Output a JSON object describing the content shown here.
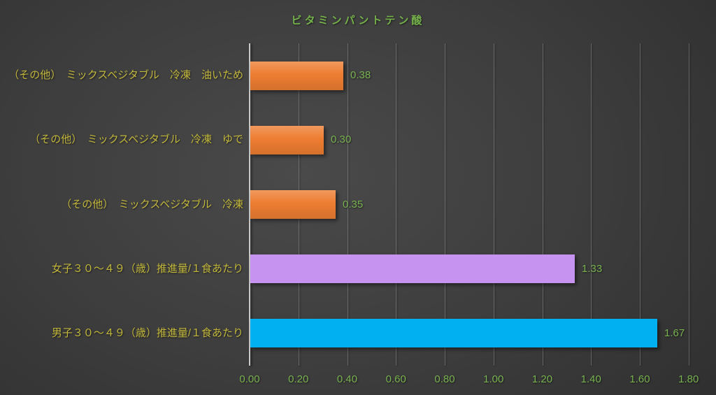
{
  "chart_data": {
    "type": "bar",
    "orientation": "horizontal",
    "title": "ビタミンパントテン酸",
    "categories": [
      "（その他）　ミックスベジタブル　冷凍　油いため",
      "（その他）　ミックスベジタブル　冷凍　ゆで",
      "（その他）　ミックスベジタブル　冷凍",
      "女子３０～４９（歳）推進量/１食あたり",
      "男子３０～４９（歳）推進量/１食あたり"
    ],
    "values": [
      0.38,
      0.3,
      0.35,
      1.33,
      1.67
    ],
    "value_labels": [
      "0.38",
      "0.30",
      "0.35",
      "1.33",
      "1.67"
    ],
    "bar_colors": [
      "#ED7D31",
      "#ED7D31",
      "#ED7D31",
      "#C694F0",
      "#00B0F0"
    ],
    "bar_gradient": [
      true,
      true,
      true,
      false,
      false
    ],
    "xticks": [
      "0.00",
      "0.20",
      "0.40",
      "0.60",
      "0.80",
      "1.00",
      "1.20",
      "1.40",
      "1.60",
      "1.80"
    ],
    "xlim": [
      0,
      1.8
    ],
    "grid": true,
    "legend": "none",
    "category_order": "top-to-bottom"
  },
  "colors": {
    "title": "#75B14B",
    "category_label": "#C2B73D",
    "value_label": "#79B250",
    "tick_label": "#79B250",
    "axis_line": "#C9C9C9",
    "gridline": "rgba(220,220,220,0.28)"
  }
}
